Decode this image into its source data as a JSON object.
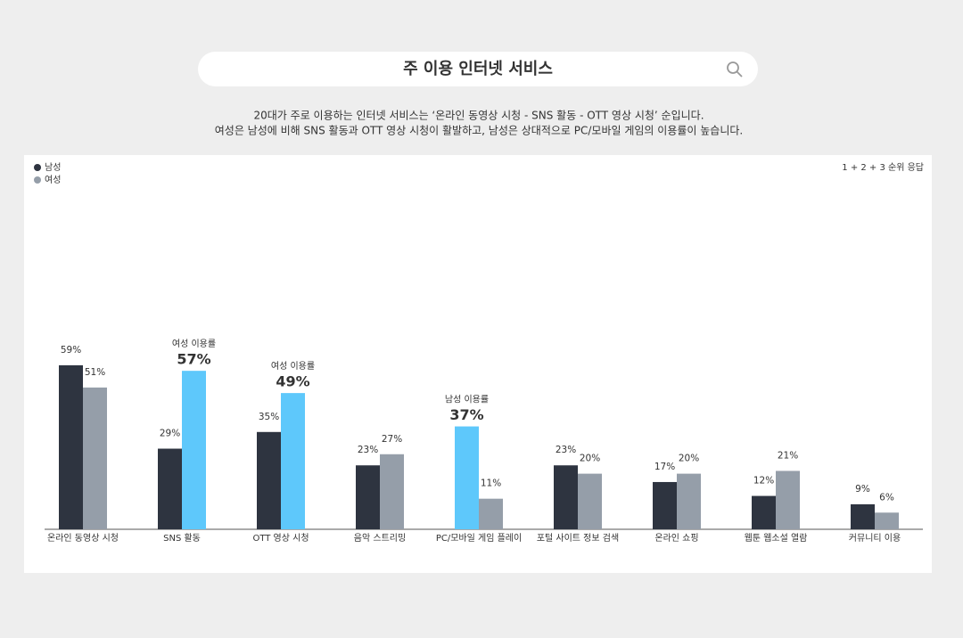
{
  "header": {
    "title": "주 이용 인터넷 서비스",
    "subtitle": [
      "20대가 주로 이용하는 인터넷 서비스는 ‘온라인 동영상 시청 - SNS 활동 - OTT 영상 시청’ 순입니다.",
      "여성은 남성에 비해 SNS 활동과 OTT 영상 시청이 활발하고, 남성은 상대적으로 PC/모바일 게임의 이용률이 높습니다."
    ]
  },
  "chart_data": {
    "type": "bar",
    "note": "1 + 2 + 3 순위 응답",
    "categories": [
      "온라인 동영상 시청",
      "SNS 활동",
      "OTT 영상 시청",
      "음악 스트리밍",
      "PC/모바일 게임 플레이",
      "포털 사이트 정보 검색",
      "온라인 쇼핑",
      "웹툰 웹소설 열람",
      "커뮤니티 이용"
    ],
    "ylim": [
      0,
      100
    ],
    "series": [
      {
        "name": "남성",
        "color": "#2e3440",
        "values": [
          59,
          29,
          35,
          23,
          37,
          23,
          17,
          12,
          9
        ],
        "value_labels": [
          "59%",
          "29%",
          "35%",
          "23%",
          "37%",
          "23%",
          "17%",
          "12%",
          "9%"
        ],
        "point_colors": [
          null,
          null,
          null,
          null,
          "#5ec8fb",
          null,
          null,
          null,
          null
        ],
        "annotations": [
          null,
          null,
          null,
          null,
          "남성 이용률",
          null,
          null,
          null,
          null
        ]
      },
      {
        "name": "여성",
        "color": "#959ea9",
        "values": [
          51,
          57,
          49,
          27,
          11,
          20,
          20,
          21,
          6
        ],
        "value_labels": [
          "51%",
          "57%",
          "49%",
          "27%",
          "11%",
          "20%",
          "20%",
          "21%",
          "6%"
        ],
        "point_colors": [
          null,
          "#5ec8fb",
          "#5ec8fb",
          null,
          null,
          null,
          null,
          null,
          null
        ],
        "annotations": [
          null,
          "여성 이용률",
          "여성 이용률",
          null,
          null,
          null,
          null,
          null,
          null
        ]
      }
    ]
  }
}
